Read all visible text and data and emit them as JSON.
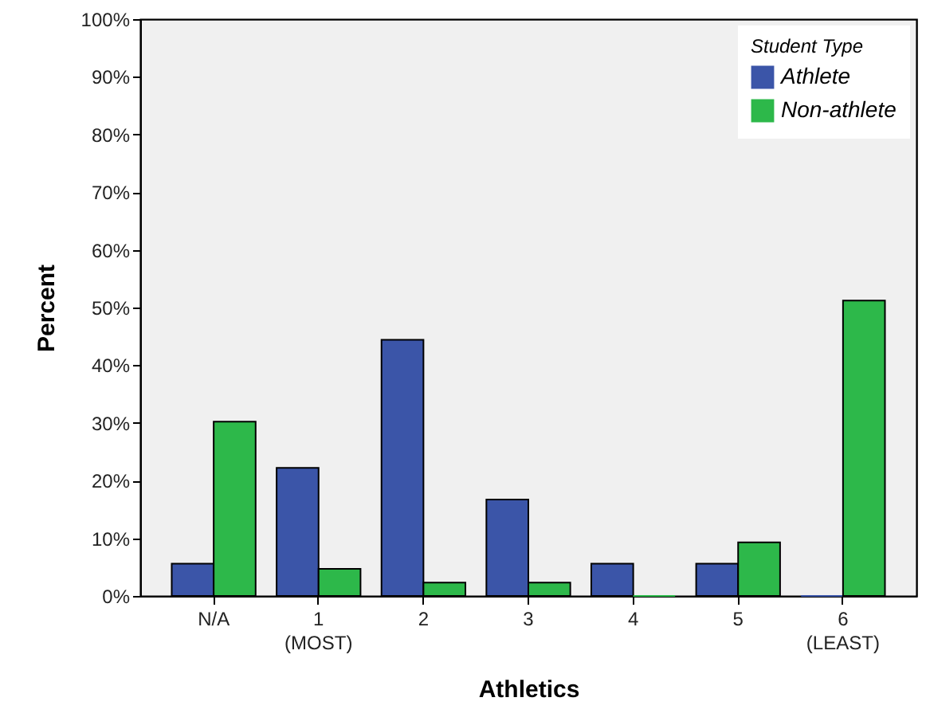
{
  "chart_data": {
    "type": "bar",
    "xlabel": "Athletics",
    "ylabel": "Percent",
    "legend_title": "Student Type",
    "legend": "top right",
    "grid": false,
    "categories": [
      "N/A",
      "1\n(MOST)",
      "2",
      "3",
      "4",
      "5",
      "6\n(LEAST)"
    ],
    "series": [
      {
        "name": "Athlete",
        "color": "#3b55a8",
        "values": [
          5.6,
          22.2,
          44.4,
          16.7,
          5.6,
          5.6,
          0
        ]
      },
      {
        "name": "Non-athlete",
        "color": "#2db84a",
        "values": [
          30.2,
          4.7,
          2.3,
          2.3,
          0,
          9.3,
          51.2
        ]
      }
    ],
    "ylim": [
      0,
      100
    ],
    "yticks": [
      {
        "value": 0,
        "label": "0%"
      },
      {
        "value": 10,
        "label": "10%"
      },
      {
        "value": 20,
        "label": "20%"
      },
      {
        "value": 30,
        "label": "30%"
      },
      {
        "value": 40,
        "label": "40%"
      },
      {
        "value": 50,
        "label": "50%"
      },
      {
        "value": 60,
        "label": "60%"
      },
      {
        "value": 70,
        "label": "70%"
      },
      {
        "value": 80,
        "label": "80%"
      },
      {
        "value": 90,
        "label": "90%"
      },
      {
        "value": 100,
        "label": "100%"
      }
    ]
  }
}
